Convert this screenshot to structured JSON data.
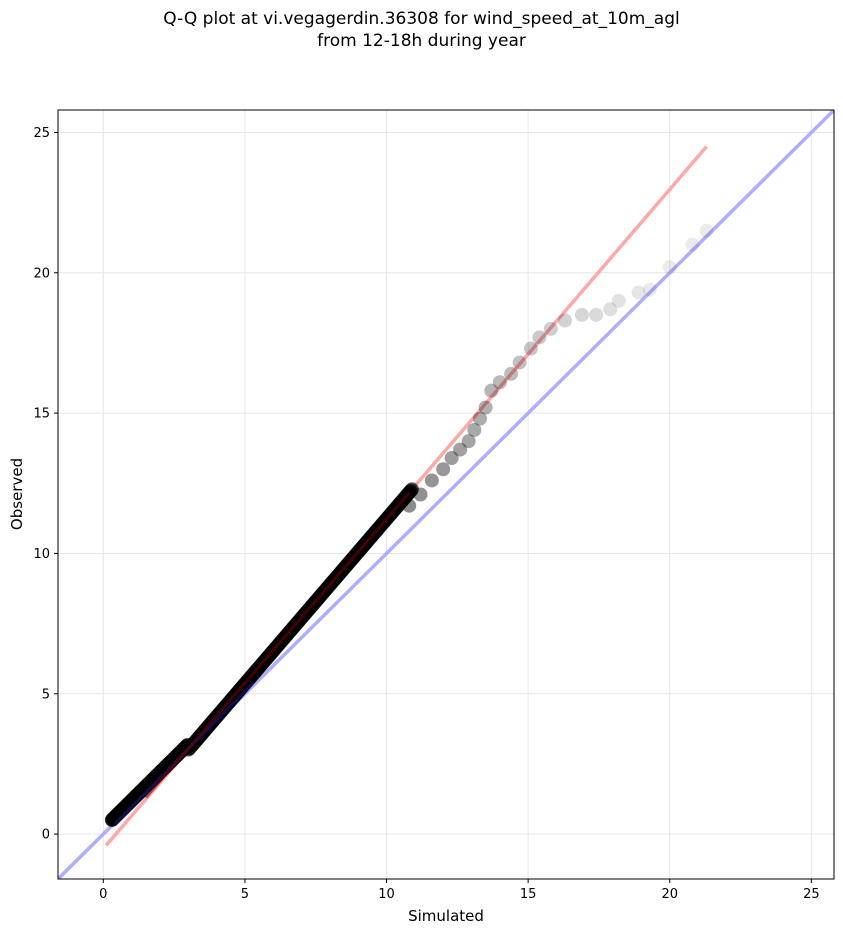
{
  "chart_data": {
    "type": "scatter",
    "title": "Q-Q plot at vi.vegagerdin.36308 for wind_speed_at_10m_agl",
    "subtitle": "from 12-18h during year",
    "xlabel": "Simulated",
    "ylabel": "Observed",
    "xlim": [
      -1.6,
      25.8
    ],
    "ylim": [
      -1.6,
      25.8
    ],
    "xticks": [
      0,
      5,
      10,
      15,
      20,
      25
    ],
    "yticks": [
      0,
      5,
      10,
      15,
      20,
      25
    ],
    "grid": true,
    "reference_line": {
      "color": "#aaaaff",
      "x": [
        -1.6,
        25.8
      ],
      "y": [
        -1.6,
        25.8
      ]
    },
    "fit_line": {
      "color": "#ff9999",
      "x": [
        0.1,
        21.3
      ],
      "y": [
        -0.4,
        24.5
      ]
    },
    "tail_points": {
      "x": [
        10.8,
        11.2,
        11.6,
        12.0,
        12.3,
        12.6,
        12.9,
        13.1,
        13.3,
        13.5,
        13.7,
        14.0,
        14.4,
        14.7,
        15.1,
        15.4,
        15.8,
        16.3,
        16.9,
        17.4,
        17.9,
        18.2,
        18.9,
        19.3,
        20.0,
        20.8,
        21.3
      ],
      "y": [
        11.7,
        12.1,
        12.6,
        13.0,
        13.4,
        13.7,
        14.0,
        14.4,
        14.8,
        15.2,
        15.8,
        16.1,
        16.4,
        16.8,
        17.3,
        17.7,
        18.0,
        18.3,
        18.5,
        18.5,
        18.7,
        19.0,
        19.3,
        19.4,
        20.2,
        21.0,
        21.5
      ]
    },
    "colors": {
      "reference": "#aaaaff",
      "fit": "#ff9999",
      "points": "#000000"
    }
  }
}
